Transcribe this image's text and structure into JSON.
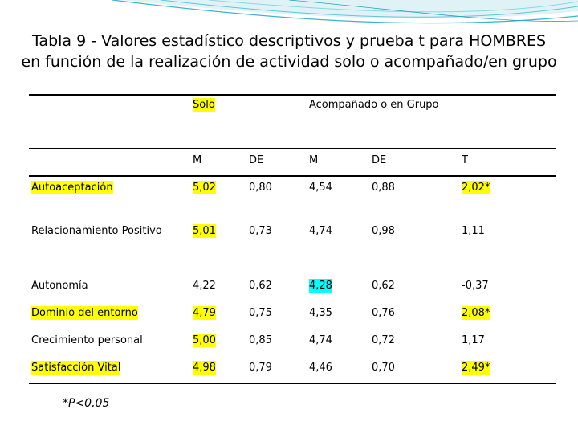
{
  "title": {
    "line1_prefix": "Tabla 9 - Valores estadístico descriptivos y prueba t para ",
    "line1_underlined": "HOMBRES",
    "line2_prefix": "en función de la realización de ",
    "line2_underlined": "actividad solo o acompañado/en grupo"
  },
  "table": {
    "group_headers": {
      "solo": "Solo",
      "grupo": "Acompañado o en Grupo"
    },
    "sub_headers": {
      "m1": "M",
      "de1": "DE",
      "m2": "M",
      "de2": "DE",
      "t": "T"
    },
    "rows": [
      {
        "label": "Autoaceptación",
        "m1": "5,02",
        "de1": "0,80",
        "m2": "4,54",
        "de2": "0,88",
        "t": "2,02*"
      },
      {
        "label": "Relacionamiento Positivo",
        "m1": "5,01",
        "de1": "0,73",
        "m2": "4,74",
        "de2": "0,98",
        "t": "1,11"
      },
      {
        "label": "Autonomía",
        "m1": "4,22",
        "de1": "0,62",
        "m2": "4,28",
        "de2": "0,62",
        "t": "-0,37"
      },
      {
        "label": "Dominio del entorno",
        "m1": "4,79",
        "de1": "0,75",
        "m2": "4,35",
        "de2": "0,76",
        "t": "2,08*"
      },
      {
        "label": "Crecimiento personal",
        "m1": "5,00",
        "de1": "0,85",
        "m2": "4,74",
        "de2": "0,72",
        "t": "1,17"
      },
      {
        "label": "Satisfacción Vital",
        "m1": "4,98",
        "de1": "0,79",
        "m2": "4,46",
        "de2": "0,70",
        "t": "2,49*"
      }
    ]
  },
  "footnote": "*P<0,05",
  "colors": {
    "highlight_yellow": "#ffff00",
    "highlight_cyan": "#00ffff",
    "wave": "#3ab5c9"
  }
}
